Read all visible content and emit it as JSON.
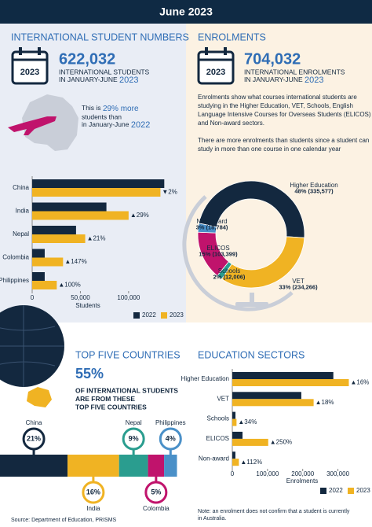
{
  "header": {
    "title": "June 2023"
  },
  "student_numbers": {
    "title": "INTERNATIONAL STUDENT NUMBERS",
    "icon_year": "2023",
    "total": "622,032",
    "line1": "INTERNATIONAL STUDENTS",
    "line2": "IN JANUARY-JUNE",
    "year": "2023",
    "comparison": {
      "pre": "This is",
      "highlight": "29% more",
      "mid": "students than",
      "line2": "in January-June",
      "year": "2022"
    }
  },
  "enrolments": {
    "title": "ENROLMENTS",
    "icon_year": "2023",
    "total": "704,032",
    "line1": "INTERNATIONAL ENROLMENTS",
    "line2": "IN JANUARY-JUNE",
    "year": "2023",
    "paragraphs": [
      [
        "Enrolments show what courses international students are",
        "studying in the Higher Education, VET, Schools, English",
        "Language Intensive Courses for Overseas Students (ELICOS)",
        "and Non-award sectors."
      ],
      [
        "There are more enrolments than students since a student can",
        "study in more than one course in one calendar year"
      ]
    ]
  },
  "top_countries": {
    "title": "TOP FIVE COUNTRIES",
    "share": "55%",
    "description": [
      "OF INTERNATIONAL STUDENTS",
      "ARE FROM THESE",
      "TOP FIVE COUNTRIES"
    ]
  },
  "education_sectors": {
    "title": "EDUCATION SECTORS",
    "note": [
      "Note: an enrolment does not confirm that a student is currently",
      "in Australia."
    ]
  },
  "source": "Source: Department of Education, PRISMS",
  "chart_data": [
    {
      "type": "hbar",
      "categories": [
        "China",
        "India",
        "Nepal",
        "Colombia",
        "Philippines"
      ],
      "series": [
        {
          "name": "2022",
          "color": "#13283f",
          "values": [
            137000,
            77000,
            45500,
            13000,
            13000
          ]
        },
        {
          "name": "2023",
          "color": "#f0b323",
          "values": [
            133000,
            100000,
            55000,
            32000,
            25500
          ]
        }
      ],
      "annotations": [
        "▼2%",
        "▲29%",
        "▲21%",
        "▲147%",
        "▲100%"
      ],
      "xlabel": "Students",
      "xlim": [
        0,
        140000
      ],
      "xticks": [
        0,
        {
          "value": 50000,
          "label": "50,000"
        },
        {
          "value": 100000,
          "label": "100,000"
        }
      ],
      "legend": "bottom-right"
    },
    {
      "type": "donut",
      "categories": [
        "Higher Education",
        "VET",
        "Schools",
        "ELICOS",
        "Non-award"
      ],
      "values": [
        335577,
        234266,
        12006,
        103399,
        18784
      ],
      "value_labels": [
        "48% (335,577)",
        "33% (234,266)",
        "2% (12,006)",
        "15% (103,399)",
        "3% (18,784)"
      ],
      "colors": [
        "#13283f",
        "#f0b323",
        "#2a9d8f",
        "#c0136c",
        "#4a90c8"
      ]
    },
    {
      "type": "stacked",
      "categories": [
        "China",
        "India",
        "Nepal",
        "Colombia",
        "Philippines"
      ],
      "values": [
        21,
        16,
        9,
        5,
        4
      ],
      "value_labels": [
        "21%",
        "16%",
        "9%",
        "5%",
        "4%"
      ],
      "colors": [
        "#13283f",
        "#f0b323",
        "#2a9d8f",
        "#c0136c",
        "#4a90c8"
      ]
    },
    {
      "type": "hbar",
      "categories": [
        "Higher Education",
        "VET",
        "Schools",
        "ELICOS",
        "Non-award"
      ],
      "series": [
        {
          "name": "2022",
          "color": "#13283f",
          "values": [
            287000,
            196000,
            9000,
            29000,
            8800
          ]
        },
        {
          "name": "2023",
          "color": "#f0b323",
          "values": [
            331000,
            231000,
            12000,
            102000,
            18700
          ]
        }
      ],
      "annotations": [
        "▲16%",
        "▲18%",
        "▲34%",
        "▲250%",
        "▲112%"
      ],
      "xlabel": "Enrolments",
      "xlim": [
        0,
        350000
      ],
      "xticks": [
        0,
        {
          "value": 100000,
          "label": "100,000"
        },
        {
          "value": 200000,
          "label": "200,000"
        },
        {
          "value": 300000,
          "label": "300,000"
        }
      ],
      "legend": "bottom-right"
    }
  ]
}
